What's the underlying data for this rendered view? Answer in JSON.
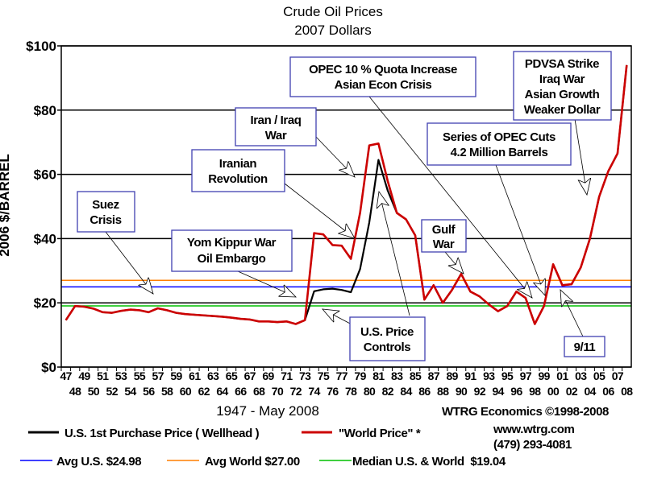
{
  "chart_data": {
    "type": "line",
    "title": "Crude Oil Prices",
    "subtitle": "2007 Dollars",
    "ylabel": "2006 $/BARREL",
    "xlabel": "1947 - May 2008",
    "ylim": [
      0,
      100
    ],
    "y_ticks": [
      "$0",
      "$20",
      "$40",
      "$60",
      "$80",
      "$100"
    ],
    "y_tick_values": [
      0,
      20,
      40,
      60,
      80,
      100
    ],
    "grid": true,
    "x": [
      "47",
      "48",
      "49",
      "50",
      "51",
      "52",
      "53",
      "54",
      "55",
      "56",
      "57",
      "58",
      "59",
      "60",
      "61",
      "62",
      "63",
      "64",
      "65",
      "66",
      "67",
      "68",
      "69",
      "70",
      "71",
      "72",
      "73",
      "74",
      "75",
      "76",
      "77",
      "78",
      "79",
      "80",
      "81",
      "82",
      "83",
      "84",
      "85",
      "86",
      "87",
      "88",
      "89",
      "90",
      "91",
      "92",
      "93",
      "94",
      "95",
      "96",
      "97",
      "98",
      "99",
      "00",
      "01",
      "02",
      "03",
      "04",
      "05",
      "06",
      "07",
      "08"
    ],
    "series": [
      {
        "name": "U.S. 1st Purchase Price ( Wellhead )",
        "color": "#000000",
        "values": [
          14.6,
          19.0,
          18.8,
          18.2,
          17.1,
          16.9,
          17.5,
          17.9,
          17.7,
          17.1,
          18.3,
          17.7,
          16.9,
          16.5,
          16.3,
          16.1,
          15.9,
          15.7,
          15.4,
          15.0,
          14.8,
          14.2,
          14.2,
          14.0,
          14.2,
          13.4,
          14.6,
          23.6,
          24.2,
          24.4,
          24.0,
          23.3,
          30.5,
          45.0,
          64.5,
          55.0,
          48.0,
          46.0,
          41.0,
          21.0,
          25.5,
          20.0,
          24.0,
          29.0,
          23.5,
          22.0,
          19.5,
          17.4,
          19.0,
          23.5,
          21.5,
          13.4,
          19.0,
          32.0,
          25.5,
          25.8,
          31.0,
          40.0,
          53.0,
          61.0,
          66.5,
          94.0
        ]
      },
      {
        "name": "\"World Price\" *",
        "color": "#cc0000",
        "values": [
          14.6,
          19.0,
          18.8,
          18.2,
          17.1,
          16.9,
          17.5,
          17.9,
          17.7,
          17.1,
          18.3,
          17.7,
          16.9,
          16.5,
          16.3,
          16.1,
          15.9,
          15.7,
          15.4,
          15.0,
          14.8,
          14.2,
          14.2,
          14.0,
          14.2,
          13.4,
          14.6,
          41.7,
          41.3,
          38.0,
          37.8,
          33.7,
          48.0,
          69.0,
          69.6,
          58.0,
          48.0,
          46.0,
          41.0,
          21.0,
          25.5,
          20.0,
          24.0,
          29.0,
          23.5,
          22.0,
          19.5,
          17.4,
          19.0,
          23.5,
          21.5,
          13.4,
          19.0,
          32.0,
          25.5,
          25.8,
          31.0,
          40.0,
          53.0,
          61.0,
          66.5,
          94.0
        ]
      }
    ],
    "reference_lines": [
      {
        "name": "Avg U.S. $24.98",
        "value": 24.98,
        "color": "#0000ff"
      },
      {
        "name": "Avg World $27.00",
        "value": 27.0,
        "color": "#ff7f00"
      },
      {
        "name": "Median U.S. & World  $19.04",
        "value": 19.04,
        "color": "#00c000"
      }
    ],
    "annotations": {
      "opec_quota": [
        "OPEC 10 % Quota Increase",
        "Asian Econ Crisis"
      ],
      "pdvsa": [
        "PDVSA Strike",
        "Iraq War",
        "Asian Growth",
        "Weaker Dollar"
      ],
      "iran_iraq": [
        "Iran / Iraq",
        "War"
      ],
      "opec_cuts": [
        "Series of OPEC Cuts",
        "4.2 Million Barrels"
      ],
      "iranian_rev": [
        "Iranian",
        "Revolution"
      ],
      "suez": [
        "Suez",
        "Crisis"
      ],
      "yom_kippur": [
        "Yom Kippur War",
        "Oil Embargo"
      ],
      "gulf": [
        "Gulf",
        "War"
      ],
      "price_controls": [
        "U.S. Price",
        "Controls"
      ],
      "nine_eleven": [
        "9/11"
      ]
    },
    "credits": {
      "source": "WTRG Economics ©1998-2008",
      "website": "www.wtrg.com",
      "phone": "(479) 293-4081"
    }
  }
}
